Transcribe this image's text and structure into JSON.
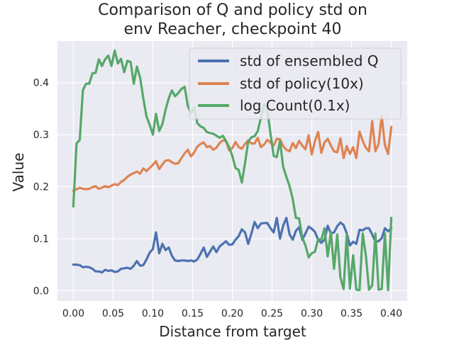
{
  "chart_data": {
    "type": "line",
    "title_lines": [
      "Comparison of Q and policy std on",
      "env Reacher, checkpoint 40"
    ],
    "xlabel": "Distance from target",
    "ylabel": "Value",
    "xlim": [
      -0.02,
      0.42
    ],
    "ylim": [
      -0.02,
      0.48
    ],
    "xticks": [
      0.0,
      0.05,
      0.1,
      0.15,
      0.2,
      0.25,
      0.3,
      0.35,
      0.4
    ],
    "xtick_labels": [
      "0.00",
      "0.05",
      "0.10",
      "0.15",
      "0.20",
      "0.25",
      "0.30",
      "0.35",
      "0.40"
    ],
    "yticks": [
      0.0,
      0.1,
      0.2,
      0.3,
      0.4
    ],
    "ytick_labels": [
      "0.0",
      "0.1",
      "0.2",
      "0.3",
      "0.4"
    ],
    "grid": true,
    "background": "#eaeaf2",
    "legend_position": "top-right",
    "series": [
      {
        "name": "std of ensembled Q",
        "color": "#4c72b0",
        "x": [
          0.0,
          0.004,
          0.008,
          0.012,
          0.016,
          0.02,
          0.024,
          0.028,
          0.032,
          0.036,
          0.04,
          0.044,
          0.048,
          0.052,
          0.056,
          0.06,
          0.064,
          0.068,
          0.072,
          0.076,
          0.08,
          0.084,
          0.088,
          0.092,
          0.096,
          0.1,
          0.104,
          0.108,
          0.112,
          0.116,
          0.12,
          0.124,
          0.128,
          0.132,
          0.136,
          0.14,
          0.144,
          0.148,
          0.152,
          0.156,
          0.16,
          0.164,
          0.168,
          0.172,
          0.176,
          0.18,
          0.184,
          0.188,
          0.192,
          0.196,
          0.2,
          0.204,
          0.208,
          0.212,
          0.216,
          0.22,
          0.224,
          0.228,
          0.232,
          0.236,
          0.24,
          0.244,
          0.248,
          0.252,
          0.256,
          0.26,
          0.264,
          0.268,
          0.272,
          0.276,
          0.28,
          0.284,
          0.288,
          0.292,
          0.296,
          0.3,
          0.304,
          0.308,
          0.312,
          0.316,
          0.32,
          0.324,
          0.328,
          0.332,
          0.336,
          0.34,
          0.344,
          0.348,
          0.352,
          0.356,
          0.36,
          0.364,
          0.368,
          0.372,
          0.376,
          0.38,
          0.384,
          0.388,
          0.392,
          0.396,
          0.4
        ],
        "y": [
          0.05,
          0.05,
          0.049,
          0.045,
          0.046,
          0.045,
          0.042,
          0.037,
          0.037,
          0.035,
          0.04,
          0.038,
          0.039,
          0.036,
          0.037,
          0.042,
          0.043,
          0.044,
          0.042,
          0.048,
          0.057,
          0.048,
          0.049,
          0.06,
          0.073,
          0.08,
          0.112,
          0.072,
          0.09,
          0.078,
          0.083,
          0.067,
          0.058,
          0.057,
          0.058,
          0.058,
          0.057,
          0.058,
          0.056,
          0.06,
          0.071,
          0.083,
          0.065,
          0.075,
          0.085,
          0.074,
          0.085,
          0.09,
          0.095,
          0.088,
          0.089,
          0.098,
          0.105,
          0.118,
          0.112,
          0.09,
          0.11,
          0.132,
          0.12,
          0.129,
          0.13,
          0.13,
          0.12,
          0.112,
          0.14,
          0.1,
          0.125,
          0.14,
          0.108,
          0.098,
          0.115,
          0.122,
          0.098,
          0.11,
          0.123,
          0.119,
          0.113,
          0.098,
          0.092,
          0.098,
          0.125,
          0.11,
          0.112,
          0.124,
          0.131,
          0.126,
          0.11,
          0.087,
          0.094,
          0.09,
          0.117,
          0.116,
          0.12,
          0.12,
          0.108,
          0.094,
          0.095,
          0.101,
          0.12,
          0.114,
          0.12
        ],
        "note_x_is_resampled": false
      },
      {
        "name": "std of policy(10x)",
        "color": "#dd8452",
        "x": [
          0.0,
          0.004,
          0.008,
          0.012,
          0.016,
          0.02,
          0.024,
          0.028,
          0.032,
          0.036,
          0.04,
          0.044,
          0.048,
          0.052,
          0.056,
          0.06,
          0.064,
          0.068,
          0.072,
          0.076,
          0.08,
          0.084,
          0.088,
          0.092,
          0.096,
          0.1,
          0.104,
          0.108,
          0.112,
          0.116,
          0.12,
          0.124,
          0.128,
          0.132,
          0.136,
          0.14,
          0.144,
          0.148,
          0.152,
          0.156,
          0.16,
          0.164,
          0.168,
          0.172,
          0.176,
          0.18,
          0.184,
          0.188,
          0.192,
          0.196,
          0.2,
          0.204,
          0.208,
          0.212,
          0.216,
          0.22,
          0.224,
          0.228,
          0.232,
          0.236,
          0.24,
          0.244,
          0.248,
          0.252,
          0.256,
          0.26,
          0.264,
          0.268,
          0.272,
          0.276,
          0.28,
          0.284,
          0.288,
          0.292,
          0.296,
          0.3,
          0.304,
          0.308,
          0.312,
          0.316,
          0.32,
          0.324,
          0.328,
          0.332,
          0.336,
          0.34,
          0.344,
          0.348,
          0.352,
          0.356,
          0.36,
          0.364,
          0.368,
          0.372,
          0.376,
          0.38,
          0.384,
          0.388,
          0.392,
          0.396,
          0.4
        ],
        "y": [
          0.192,
          0.195,
          0.198,
          0.196,
          0.195,
          0.196,
          0.199,
          0.201,
          0.196,
          0.198,
          0.201,
          0.199,
          0.202,
          0.205,
          0.203,
          0.209,
          0.213,
          0.219,
          0.223,
          0.226,
          0.229,
          0.225,
          0.235,
          0.23,
          0.236,
          0.242,
          0.249,
          0.234,
          0.243,
          0.25,
          0.251,
          0.247,
          0.244,
          0.245,
          0.255,
          0.264,
          0.271,
          0.258,
          0.266,
          0.277,
          0.282,
          0.285,
          0.276,
          0.278,
          0.271,
          0.275,
          0.284,
          0.289,
          0.288,
          0.27,
          0.274,
          0.286,
          0.276,
          0.273,
          0.282,
          0.289,
          0.283,
          0.283,
          0.294,
          0.276,
          0.281,
          0.29,
          0.285,
          0.279,
          0.292,
          0.291,
          0.278,
          0.271,
          0.268,
          0.284,
          0.274,
          0.288,
          0.279,
          0.272,
          0.299,
          0.262,
          0.288,
          0.305,
          0.265,
          0.285,
          0.292,
          0.279,
          0.268,
          0.266,
          0.293,
          0.255,
          0.278,
          0.263,
          0.276,
          0.255,
          0.306,
          0.288,
          0.275,
          0.268,
          0.326,
          0.268,
          0.282,
          0.336,
          0.28,
          0.263,
          0.315
        ],
        "note_x_is_resampled": false
      },
      {
        "name": "log Count(0.1x)",
        "color": "#55a868",
        "x": [
          0.0,
          0.004,
          0.008,
          0.012,
          0.016,
          0.02,
          0.024,
          0.028,
          0.032,
          0.036,
          0.04,
          0.044,
          0.048,
          0.052,
          0.056,
          0.06,
          0.064,
          0.068,
          0.072,
          0.076,
          0.08,
          0.084,
          0.088,
          0.092,
          0.096,
          0.1,
          0.104,
          0.108,
          0.112,
          0.116,
          0.12,
          0.124,
          0.128,
          0.132,
          0.136,
          0.14,
          0.144,
          0.148,
          0.152,
          0.156,
          0.16,
          0.164,
          0.168,
          0.172,
          0.176,
          0.18,
          0.184,
          0.188,
          0.192,
          0.196,
          0.2,
          0.204,
          0.208,
          0.212,
          0.216,
          0.22,
          0.224,
          0.228,
          0.232,
          0.236,
          0.24,
          0.244,
          0.248,
          0.252,
          0.256,
          0.26,
          0.264,
          0.268,
          0.272,
          0.276,
          0.28,
          0.284,
          0.288,
          0.292,
          0.296,
          0.3,
          0.304,
          0.308,
          0.312,
          0.316,
          0.32,
          0.324,
          0.328,
          0.332,
          0.336,
          0.34,
          0.344,
          0.348,
          0.352,
          0.356,
          0.36,
          0.364,
          0.368,
          0.372,
          0.376,
          0.38,
          0.384,
          0.388,
          0.392,
          0.396,
          0.4
        ],
        "y": [
          0.162,
          0.283,
          0.29,
          0.386,
          0.398,
          0.398,
          0.418,
          0.419,
          0.445,
          0.432,
          0.445,
          0.452,
          0.432,
          0.462,
          0.437,
          0.446,
          0.42,
          0.442,
          0.44,
          0.398,
          0.431,
          0.41,
          0.37,
          0.335,
          0.319,
          0.3,
          0.34,
          0.307,
          0.32,
          0.348,
          0.37,
          0.385,
          0.374,
          0.38,
          0.388,
          0.392,
          0.355,
          0.341,
          0.353,
          0.322,
          0.316,
          0.313,
          0.305,
          0.303,
          0.302,
          0.298,
          0.294,
          0.298,
          0.288,
          0.276,
          0.259,
          0.236,
          0.232,
          0.208,
          0.245,
          0.287,
          0.295,
          0.297,
          0.307,
          0.333,
          0.358,
          0.349,
          0.302,
          0.259,
          0.257,
          0.288,
          0.238,
          0.219,
          0.201,
          0.176,
          0.14,
          0.139,
          0.102,
          0.087,
          0.064,
          0.072,
          0.075,
          0.099,
          0.098,
          0.12,
          0.066,
          0.113,
          0.042,
          0.108,
          0.025,
          0.003,
          0.108,
          0.004,
          0.068,
          0.002,
          0.001,
          0.11,
          0.068,
          0.002,
          0.01,
          0.11,
          0.002,
          0.003,
          0.11,
          0.001,
          0.14
        ],
        "note_x_is_resampled": false
      }
    ]
  }
}
